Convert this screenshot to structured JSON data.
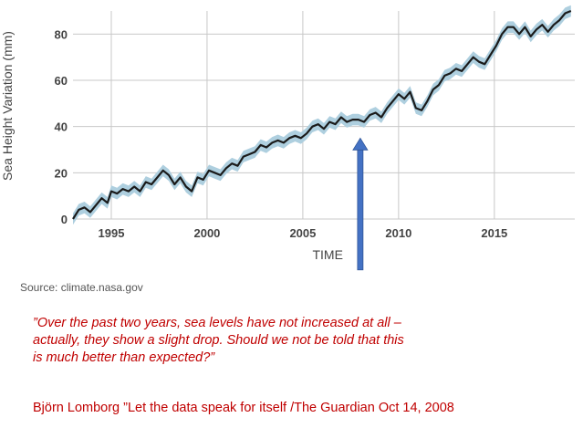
{
  "chart_data": {
    "type": "line",
    "title": "",
    "xlabel": "TIME",
    "ylabel": "Sea Height Variation (mm)",
    "xlim": [
      1993,
      2019.2
    ],
    "ylim": [
      0,
      90
    ],
    "x_ticks": [
      1995,
      2000,
      2005,
      2010,
      2015
    ],
    "y_ticks": [
      0,
      20,
      40,
      60,
      80
    ],
    "grid": true,
    "legend": "none",
    "series": [
      {
        "values_x": [
          1993.0,
          1993.3,
          1993.6,
          1993.9,
          1994.2,
          1994.5,
          1994.8,
          1995.0,
          1995.3,
          1995.6,
          1995.9,
          1996.2,
          1996.5,
          1996.8,
          1997.1,
          1997.4,
          1997.7,
          1998.0,
          1998.3,
          1998.6,
          1998.9,
          1999.2,
          1999.5,
          1999.8,
          2000.1,
          2000.4,
          2000.7,
          2001.0,
          2001.3,
          2001.6,
          2001.9,
          2002.2,
          2002.5,
          2002.8,
          2003.1,
          2003.4,
          2003.7,
          2004.0,
          2004.3,
          2004.6,
          2004.9,
          2005.2,
          2005.5,
          2005.8,
          2006.1,
          2006.4,
          2006.7,
          2007.0,
          2007.3,
          2007.6,
          2007.9,
          2008.2,
          2008.5,
          2008.8,
          2009.1,
          2009.4,
          2009.7,
          2010.0,
          2010.3,
          2010.6,
          2010.9,
          2011.2,
          2011.5,
          2011.8,
          2012.1,
          2012.4,
          2012.7,
          2013.0,
          2013.3,
          2013.6,
          2013.9,
          2014.2,
          2014.5,
          2014.8,
          2015.1,
          2015.4,
          2015.7,
          2016.0,
          2016.3,
          2016.6,
          2016.9,
          2017.2,
          2017.5,
          2017.8,
          2018.1,
          2018.4,
          2018.7,
          2019.0
        ],
        "values_y": [
          0,
          4,
          5,
          3,
          6,
          9,
          7,
          12,
          11,
          13,
          12,
          14,
          12,
          16,
          15,
          18,
          21,
          19,
          15,
          18,
          14,
          12,
          18,
          17,
          21,
          20,
          19,
          22,
          24,
          23,
          27,
          28,
          29,
          32,
          31,
          33,
          34,
          33,
          35,
          36,
          35,
          37,
          40,
          41,
          39,
          42,
          41,
          44,
          42,
          43,
          43,
          42,
          45,
          46,
          44,
          48,
          51,
          54,
          52,
          55,
          48,
          47,
          51,
          56,
          58,
          62,
          63,
          65,
          64,
          67,
          70,
          68,
          67,
          71,
          75,
          80,
          83,
          83,
          80,
          83,
          79,
          82,
          84,
          81,
          84,
          86,
          89,
          90
        ],
        "band_halfwidth": 2.5
      }
    ],
    "annotations": [
      {
        "type": "arrow",
        "x": 2008.0,
        "from_y": -22,
        "to_y": 35,
        "color": "#4472c4"
      }
    ]
  },
  "colors": {
    "line": "#1a1a1a",
    "band": "#aecfdf",
    "grid": "#c8c8c8",
    "arrow_fill": "#4472c4",
    "arrow_stroke": "#2f5597",
    "quote_text": "#c00000"
  },
  "source_note": "Source: climate.nasa.gov",
  "quote": "”Over the past two years, sea levels have not increased at all –\nactually, they show a slight drop. Should we not be told that this\nis much better than expected?”",
  "attribution": "Björn Lomborg ”Let the data speak for itself /The Guardian Oct 14, 2008"
}
